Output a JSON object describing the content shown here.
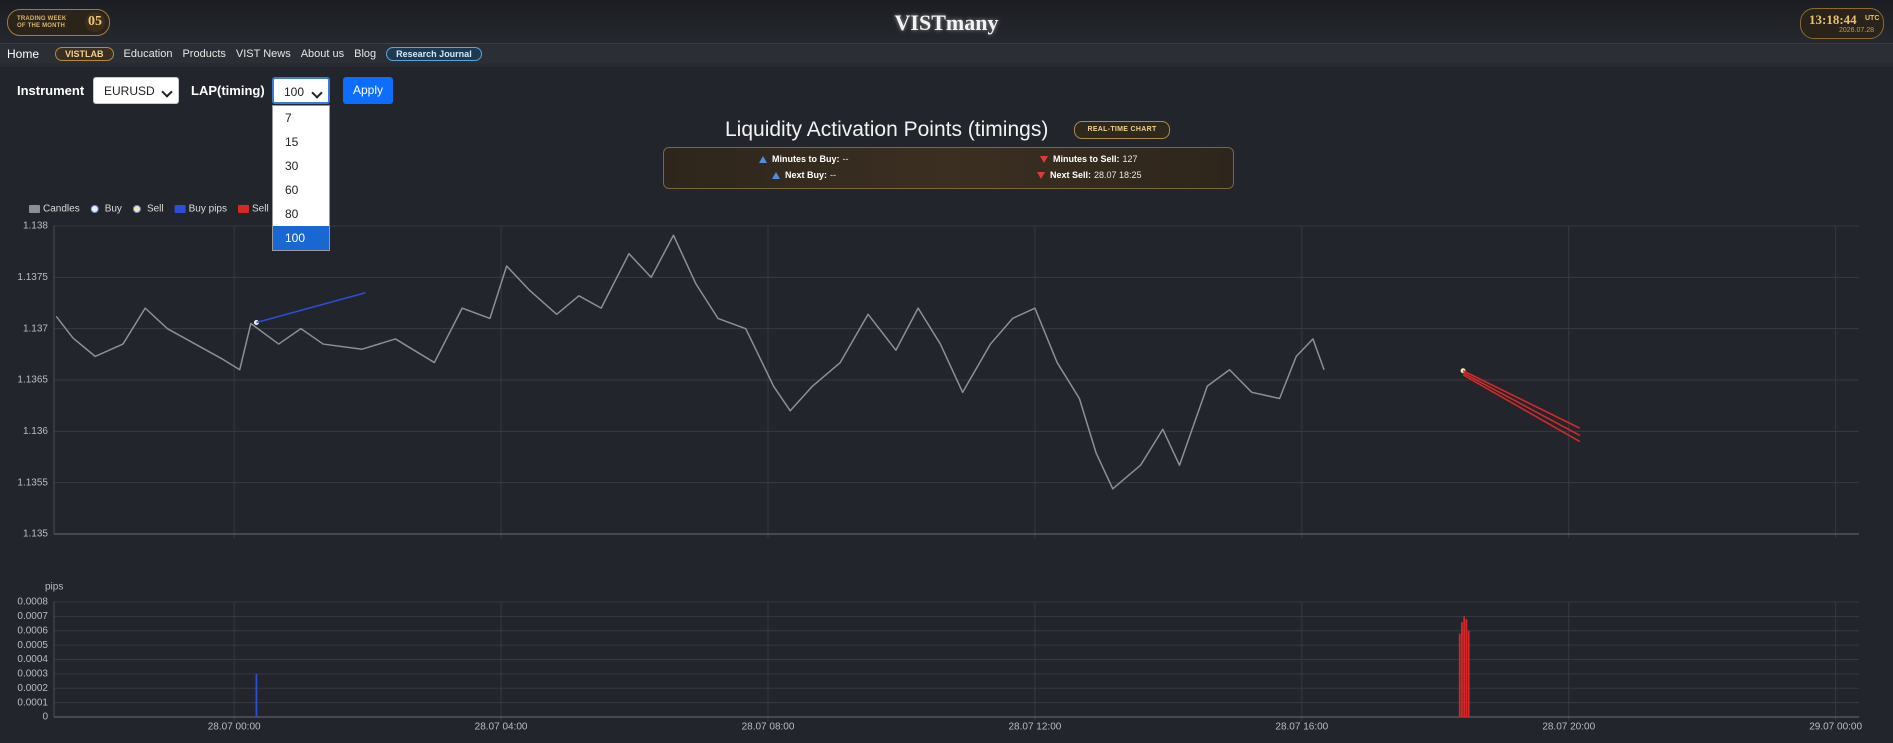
{
  "header": {
    "badge_line1": "TRADING WEEK",
    "badge_line2": "OF THE MONTH",
    "badge_number": "05",
    "title": "VISTmany",
    "clock": "13:18:44",
    "timezone": "UTC",
    "date": "2026.07.28"
  },
  "nav": [
    "Home",
    "VISTLAB",
    "Education",
    "Products",
    "VIST News",
    "About us",
    "Blog",
    "Research Journal"
  ],
  "controls": {
    "instrument_label": "Instrument",
    "instrument": "EURUSD",
    "timing_label": "LAP(timing)",
    "timing": "100",
    "apply": "Apply",
    "timing_options": [
      "7",
      "15",
      "30",
      "60",
      "80",
      "100"
    ]
  },
  "signals": {
    "minutes_to_buy_label": "Minutes to Buy:",
    "minutes_to_buy": "--",
    "next_buy_label": "Next Buy:",
    "next_buy": "--",
    "minutes_to_sell_label": "Minutes to Sell:",
    "minutes_to_sell": "127",
    "next_sell_label": "Next Sell:",
    "next_sell": "28.07 18:25"
  },
  "chart_data": [
    {
      "type": "line",
      "title": "Liquidity Activation Points (timings)",
      "badge": "REAL-TIME CHART",
      "xlim": [
        "27.07 21:18",
        "29.07 00:21"
      ],
      "xticks": [
        "28.07 00:00",
        "28.07 04:00",
        "28.07 08:00",
        "28.07 12:00",
        "28.07 16:00",
        "28.07 20:00",
        "29.07 00:00"
      ],
      "ylim": [
        1.135,
        1.138
      ],
      "yticks": [
        1.138,
        1.1375,
        1.137,
        1.1365,
        1.136,
        1.1355,
        1.135
      ],
      "grid": true,
      "series": [
        {
          "name": "Candles",
          "color": "#8b8f97",
          "marker": "square",
          "x": [
            "27.07 21:20",
            "27.07 21:35",
            "27.07 21:55",
            "27.07 22:20",
            "27.07 22:40",
            "27.07 23:00",
            "27.07 23:25",
            "27.07 23:50",
            "28.07 00:05",
            "28.07 00:15",
            "28.07 00:40",
            "28.07 01:00",
            "28.07 01:20",
            "28.07 01:55",
            "28.07 02:25",
            "28.07 03:00",
            "28.07 03:25",
            "28.07 03:50",
            "28.07 04:05",
            "28.07 04:25",
            "28.07 04:50",
            "28.07 05:10",
            "28.07 05:30",
            "28.07 05:55",
            "28.07 06:15",
            "28.07 06:35",
            "28.07 06:55",
            "28.07 07:15",
            "28.07 07:40",
            "28.07 08:05",
            "28.07 08:20",
            "28.07 08:40",
            "28.07 09:05",
            "28.07 09:30",
            "28.07 09:55",
            "28.07 10:15",
            "28.07 10:35",
            "28.07 10:55",
            "28.07 11:20",
            "28.07 11:40",
            "28.07 12:00",
            "28.07 12:20",
            "28.07 12:40",
            "28.07 12:55",
            "28.07 13:10",
            "28.07 13:35",
            "28.07 13:55",
            "28.07 14:10",
            "28.07 14:35",
            "28.07 14:55",
            "28.07 15:15",
            "28.07 15:40",
            "28.07 15:55",
            "28.07 16:10",
            "28.07 16:20"
          ],
          "values": [
            1.13712,
            1.13691,
            1.13673,
            1.13685,
            1.1372,
            1.137,
            1.13685,
            1.1367,
            1.1366,
            1.13705,
            1.13685,
            1.137,
            1.13685,
            1.1368,
            1.1369,
            1.13667,
            1.1372,
            1.1371,
            1.13761,
            1.13738,
            1.13714,
            1.13732,
            1.1372,
            1.13773,
            1.1375,
            1.13791,
            1.13744,
            1.1371,
            1.137,
            1.13644,
            1.1362,
            1.13644,
            1.13667,
            1.13714,
            1.13679,
            1.1372,
            1.13685,
            1.13638,
            1.13685,
            1.1371,
            1.1372,
            1.13667,
            1.13632,
            1.13579,
            1.13544,
            1.13567,
            1.13602,
            1.13567,
            1.13644,
            1.1366,
            1.13638,
            1.13632,
            1.13673,
            1.1369,
            1.1366
          ]
        },
        {
          "name": "Buy",
          "color": "#e8eefc",
          "marker": "circle",
          "x": [
            "28.07 00:20"
          ],
          "values": [
            1.13706
          ]
        },
        {
          "name": "Sell",
          "color": "#f3e7b4",
          "marker": "circle",
          "x": [
            "28.07 18:25"
          ],
          "values": [
            1.13659
          ]
        },
        {
          "name": "Buy pips",
          "color": "#2b4fd8",
          "marker": "square",
          "segments": [
            {
              "x": [
                "28.07 00:20",
                "28.07 01:58"
              ],
              "values": [
                1.13706,
                1.13735
              ]
            }
          ]
        },
        {
          "name": "Sell pips",
          "color": "#d62828",
          "marker": "square",
          "segments": [
            {
              "x": [
                "28.07 18:25",
                "28.07 20:10"
              ],
              "values": [
                1.13659,
                1.13603
              ]
            },
            {
              "x": [
                "28.07 18:25",
                "28.07 20:10"
              ],
              "values": [
                1.13657,
                1.13596
              ]
            },
            {
              "x": [
                "28.07 18:25",
                "28.07 20:10"
              ],
              "values": [
                1.13655,
                1.1359
              ]
            }
          ]
        }
      ]
    },
    {
      "type": "bar",
      "ylabel": "pips",
      "xlim": [
        "27.07 21:18",
        "29.07 00:21"
      ],
      "xticks": [
        "28.07 00:00",
        "28.07 04:00",
        "28.07 08:00",
        "28.07 12:00",
        "28.07 16:00",
        "28.07 20:00",
        "29.07 00:00"
      ],
      "ylim": [
        0,
        0.0008
      ],
      "yticks": [
        0.0008,
        0.0007,
        0.0006,
        0.0005,
        0.0004,
        0.0003,
        0.0002,
        0.0001,
        0
      ],
      "grid": true,
      "series": [
        {
          "color": "#2b4fd8",
          "x": [
            "28.07 00:20"
          ],
          "values": [
            0.0003
          ]
        },
        {
          "color": "#d62828",
          "x": [
            "28.07 18:22",
            "28.07 18:24",
            "28.07 18:26",
            "28.07 18:28",
            "28.07 18:30"
          ],
          "values": [
            0.00058,
            0.00066,
            0.0007,
            0.00068,
            0.0006
          ]
        }
      ]
    }
  ]
}
